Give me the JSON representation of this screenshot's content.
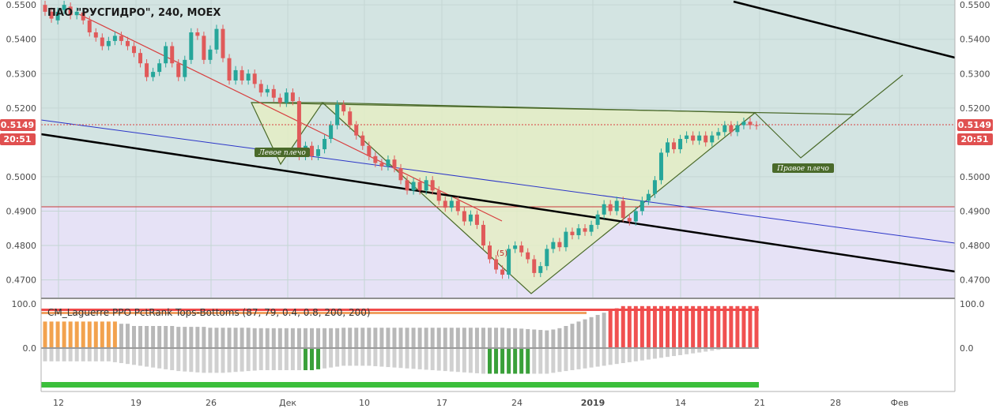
{
  "title": "ПАО \"РУСГИДРО\", 240, MOEX",
  "colors": {
    "up": "#26a69a",
    "down": "#e05a5a",
    "pattern_fill": "#e4edc4",
    "pattern_stroke": "#4a6a2a",
    "support_zone": "#e6e2f6",
    "neckline_red": "#d84040",
    "blue_line": "#2b35c8",
    "price_badge": "#e05050"
  },
  "chart_data": [
    {
      "type": "candlestick",
      "title": "ПАО \"РУСГИДРО\", 240, MOEX",
      "x_tick_labels": [
        "12",
        "19",
        "26",
        "Дек",
        "10",
        "17",
        "24",
        "2019",
        "14",
        "21",
        "28",
        "Фев"
      ],
      "y_tick_labels": [
        "0.5500",
        "0.5400",
        "0.5300",
        "0.5200",
        "0.5000",
        "0.4900",
        "0.4800",
        "0.4700"
      ],
      "ylim": [
        0.466,
        0.5505
      ],
      "last_price": "0.5149",
      "countdown": "20:51",
      "annotations": [
        "Левое плечо",
        "Правое плечо",
        "(5)"
      ],
      "series": [
        {
          "t": 0,
          "o": 0.55,
          "c": 0.548
        },
        {
          "t": 1,
          "o": 0.548,
          "c": 0.546
        },
        {
          "t": 2,
          "o": 0.5455,
          "c": 0.548
        },
        {
          "t": 3,
          "o": 0.5485,
          "c": 0.55
        },
        {
          "t": 4,
          "o": 0.5495,
          "c": 0.547
        },
        {
          "t": 5,
          "o": 0.547,
          "c": 0.548
        },
        {
          "t": 6,
          "o": 0.5478,
          "c": 0.5455
        },
        {
          "t": 7,
          "o": 0.5455,
          "c": 0.542
        },
        {
          "t": 8,
          "o": 0.542,
          "c": 0.5405
        },
        {
          "t": 9,
          "o": 0.5405,
          "c": 0.538
        },
        {
          "t": 10,
          "o": 0.538,
          "c": 0.5395
        },
        {
          "t": 11,
          "o": 0.5395,
          "c": 0.541
        },
        {
          "t": 12,
          "o": 0.541,
          "c": 0.5395
        },
        {
          "t": 13,
          "o": 0.5395,
          "c": 0.538
        },
        {
          "t": 14,
          "o": 0.538,
          "c": 0.536
        },
        {
          "t": 15,
          "o": 0.536,
          "c": 0.533
        },
        {
          "t": 16,
          "o": 0.533,
          "c": 0.529
        },
        {
          "t": 17,
          "o": 0.529,
          "c": 0.5305
        },
        {
          "t": 18,
          "o": 0.5305,
          "c": 0.533
        },
        {
          "t": 19,
          "o": 0.533,
          "c": 0.538
        },
        {
          "t": 20,
          "o": 0.538,
          "c": 0.533
        },
        {
          "t": 21,
          "o": 0.533,
          "c": 0.529
        },
        {
          "t": 22,
          "o": 0.529,
          "c": 0.534
        },
        {
          "t": 23,
          "o": 0.534,
          "c": 0.542
        },
        {
          "t": 24,
          "o": 0.542,
          "c": 0.541
        },
        {
          "t": 25,
          "o": 0.541,
          "c": 0.534
        },
        {
          "t": 26,
          "o": 0.534,
          "c": 0.537
        },
        {
          "t": 27,
          "o": 0.537,
          "c": 0.543
        },
        {
          "t": 28,
          "o": 0.543,
          "c": 0.5345
        },
        {
          "t": 29,
          "o": 0.5345,
          "c": 0.528
        },
        {
          "t": 30,
          "o": 0.528,
          "c": 0.531
        },
        {
          "t": 31,
          "o": 0.531,
          "c": 0.528
        },
        {
          "t": 32,
          "o": 0.528,
          "c": 0.53
        },
        {
          "t": 33,
          "o": 0.53,
          "c": 0.527
        },
        {
          "t": 34,
          "o": 0.527,
          "c": 0.5245
        },
        {
          "t": 35,
          "o": 0.5245,
          "c": 0.5255
        },
        {
          "t": 36,
          "o": 0.5255,
          "c": 0.523
        },
        {
          "t": 37,
          "o": 0.523,
          "c": 0.5215
        },
        {
          "t": 38,
          "o": 0.5215,
          "c": 0.5245
        },
        {
          "t": 39,
          "o": 0.5245,
          "c": 0.522
        },
        {
          "t": 40,
          "o": 0.522,
          "c": 0.506
        },
        {
          "t": 41,
          "o": 0.506,
          "c": 0.509
        },
        {
          "t": 42,
          "o": 0.509,
          "c": 0.506
        },
        {
          "t": 43,
          "o": 0.506,
          "c": 0.508
        },
        {
          "t": 44,
          "o": 0.508,
          "c": 0.511
        },
        {
          "t": 45,
          "o": 0.511,
          "c": 0.515
        },
        {
          "t": 46,
          "o": 0.515,
          "c": 0.521
        },
        {
          "t": 47,
          "o": 0.521,
          "c": 0.519
        },
        {
          "t": 48,
          "o": 0.519,
          "c": 0.515
        },
        {
          "t": 49,
          "o": 0.515,
          "c": 0.512
        },
        {
          "t": 50,
          "o": 0.512,
          "c": 0.509
        },
        {
          "t": 51,
          "o": 0.509,
          "c": 0.506
        },
        {
          "t": 52,
          "o": 0.506,
          "c": 0.504
        },
        {
          "t": 53,
          "o": 0.504,
          "c": 0.503
        },
        {
          "t": 54,
          "o": 0.503,
          "c": 0.505
        },
        {
          "t": 55,
          "o": 0.505,
          "c": 0.5025
        },
        {
          "t": 56,
          "o": 0.5025,
          "c": 0.499
        },
        {
          "t": 57,
          "o": 0.499,
          "c": 0.496
        },
        {
          "t": 58,
          "o": 0.496,
          "c": 0.4985
        },
        {
          "t": 59,
          "o": 0.4985,
          "c": 0.496
        },
        {
          "t": 60,
          "o": 0.496,
          "c": 0.499
        },
        {
          "t": 61,
          "o": 0.499,
          "c": 0.496
        },
        {
          "t": 62,
          "o": 0.496,
          "c": 0.493
        },
        {
          "t": 63,
          "o": 0.493,
          "c": 0.491
        },
        {
          "t": 64,
          "o": 0.491,
          "c": 0.493
        },
        {
          "t": 65,
          "o": 0.493,
          "c": 0.49
        },
        {
          "t": 66,
          "o": 0.49,
          "c": 0.487
        },
        {
          "t": 67,
          "o": 0.487,
          "c": 0.489
        },
        {
          "t": 68,
          "o": 0.489,
          "c": 0.486
        },
        {
          "t": 69,
          "o": 0.486,
          "c": 0.48
        },
        {
          "t": 70,
          "o": 0.48,
          "c": 0.476
        },
        {
          "t": 71,
          "o": 0.476,
          "c": 0.473
        },
        {
          "t": 72,
          "o": 0.473,
          "c": 0.4715
        },
        {
          "t": 73,
          "o": 0.4715,
          "c": 0.479
        },
        {
          "t": 74,
          "o": 0.479,
          "c": 0.48
        },
        {
          "t": 75,
          "o": 0.48,
          "c": 0.478
        },
        {
          "t": 76,
          "o": 0.478,
          "c": 0.476
        },
        {
          "t": 77,
          "o": 0.476,
          "c": 0.472
        },
        {
          "t": 78,
          "o": 0.472,
          "c": 0.474
        },
        {
          "t": 79,
          "o": 0.474,
          "c": 0.479
        },
        {
          "t": 80,
          "o": 0.479,
          "c": 0.481
        },
        {
          "t": 81,
          "o": 0.481,
          "c": 0.4795
        },
        {
          "t": 82,
          "o": 0.4795,
          "c": 0.484
        },
        {
          "t": 83,
          "o": 0.484,
          "c": 0.483
        },
        {
          "t": 84,
          "o": 0.483,
          "c": 0.485
        },
        {
          "t": 85,
          "o": 0.485,
          "c": 0.484
        },
        {
          "t": 86,
          "o": 0.484,
          "c": 0.486
        },
        {
          "t": 87,
          "o": 0.486,
          "c": 0.489
        },
        {
          "t": 88,
          "o": 0.489,
          "c": 0.492
        },
        {
          "t": 89,
          "o": 0.492,
          "c": 0.49
        },
        {
          "t": 90,
          "o": 0.49,
          "c": 0.493
        },
        {
          "t": 91,
          "o": 0.493,
          "c": 0.488
        },
        {
          "t": 92,
          "o": 0.488,
          "c": 0.487
        },
        {
          "t": 93,
          "o": 0.487,
          "c": 0.49
        },
        {
          "t": 94,
          "o": 0.49,
          "c": 0.493
        },
        {
          "t": 95,
          "o": 0.493,
          "c": 0.495
        },
        {
          "t": 96,
          "o": 0.495,
          "c": 0.499
        },
        {
          "t": 97,
          "o": 0.499,
          "c": 0.507
        },
        {
          "t": 98,
          "o": 0.507,
          "c": 0.51
        },
        {
          "t": 99,
          "o": 0.51,
          "c": 0.508
        },
        {
          "t": 100,
          "o": 0.508,
          "c": 0.511
        },
        {
          "t": 101,
          "o": 0.511,
          "c": 0.512
        },
        {
          "t": 102,
          "o": 0.512,
          "c": 0.5105
        },
        {
          "t": 103,
          "o": 0.5105,
          "c": 0.512
        },
        {
          "t": 104,
          "o": 0.512,
          "c": 0.51
        },
        {
          "t": 105,
          "o": 0.51,
          "c": 0.512
        },
        {
          "t": 106,
          "o": 0.512,
          "c": 0.513
        },
        {
          "t": 107,
          "o": 0.513,
          "c": 0.515
        },
        {
          "t": 108,
          "o": 0.515,
          "c": 0.513
        },
        {
          "t": 109,
          "o": 0.513,
          "c": 0.515
        },
        {
          "t": 110,
          "o": 0.515,
          "c": 0.516
        },
        {
          "t": 111,
          "o": 0.516,
          "c": 0.515
        },
        {
          "t": 112,
          "o": 0.515,
          "c": 0.5149
        }
      ]
    },
    {
      "type": "bar",
      "title": "CM_Laguerre PPO PctRank Tops-Bottoms (87, 79, 0.4, 0.8, 200, 200)",
      "y_tick_labels": [
        "100.0",
        "0.0"
      ],
      "ylim": [
        -100,
        100
      ],
      "series_top": [
        60,
        60,
        60,
        60,
        60,
        60,
        60,
        60,
        60,
        60,
        60,
        60,
        55,
        55,
        50,
        50,
        50,
        50,
        50,
        50,
        50,
        48,
        48,
        48,
        48,
        48,
        46,
        46,
        46,
        46,
        46,
        46,
        46,
        45,
        45,
        45,
        45,
        45,
        45,
        45,
        45,
        45,
        45,
        45,
        45,
        45,
        45,
        46,
        46,
        46,
        46,
        46,
        46,
        46,
        46,
        46,
        46,
        46,
        46,
        46,
        46,
        46,
        46,
        46,
        46,
        46,
        46,
        46,
        46,
        46,
        46,
        46,
        46,
        45,
        45,
        44,
        43,
        42,
        41,
        40,
        42,
        45,
        50,
        55,
        60,
        65,
        70,
        75,
        80,
        85,
        90,
        95,
        95,
        95,
        95,
        95,
        95,
        95,
        95,
        95,
        95,
        95,
        95,
        95,
        95,
        95,
        95,
        95,
        95,
        95,
        95,
        95,
        95
      ],
      "series_bottom": [
        -30,
        -30,
        -30,
        -30,
        -30,
        -30,
        -30,
        -30,
        -30,
        -30,
        -30,
        -32,
        -34,
        -36,
        -38,
        -40,
        -42,
        -44,
        -46,
        -48,
        -50,
        -52,
        -53,
        -54,
        -55,
        -56,
        -56,
        -56,
        -56,
        -55,
        -54,
        -53,
        -52,
        -51,
        -50,
        -50,
        -50,
        -50,
        -50,
        -50,
        -50,
        -50,
        -50,
        -48,
        -46,
        -44,
        -42,
        -40,
        -40,
        -40,
        -40,
        -40,
        -41,
        -42,
        -43,
        -44,
        -45,
        -46,
        -47,
        -48,
        -49,
        -50,
        -51,
        -52,
        -53,
        -54,
        -55,
        -56,
        -57,
        -58,
        -58,
        -58,
        -58,
        -58,
        -58,
        -58,
        -58,
        -58,
        -58,
        -58,
        -56,
        -54,
        -52,
        -50,
        -48,
        -46,
        -44,
        -42,
        -40,
        -38,
        -36,
        -34,
        -32,
        -30,
        -28,
        -26,
        -24,
        -22,
        -20,
        -18,
        -16,
        -14,
        -12,
        -10,
        -8,
        -6,
        -4,
        -2,
        -2,
        -2,
        -2,
        -2,
        -2
      ]
    }
  ]
}
